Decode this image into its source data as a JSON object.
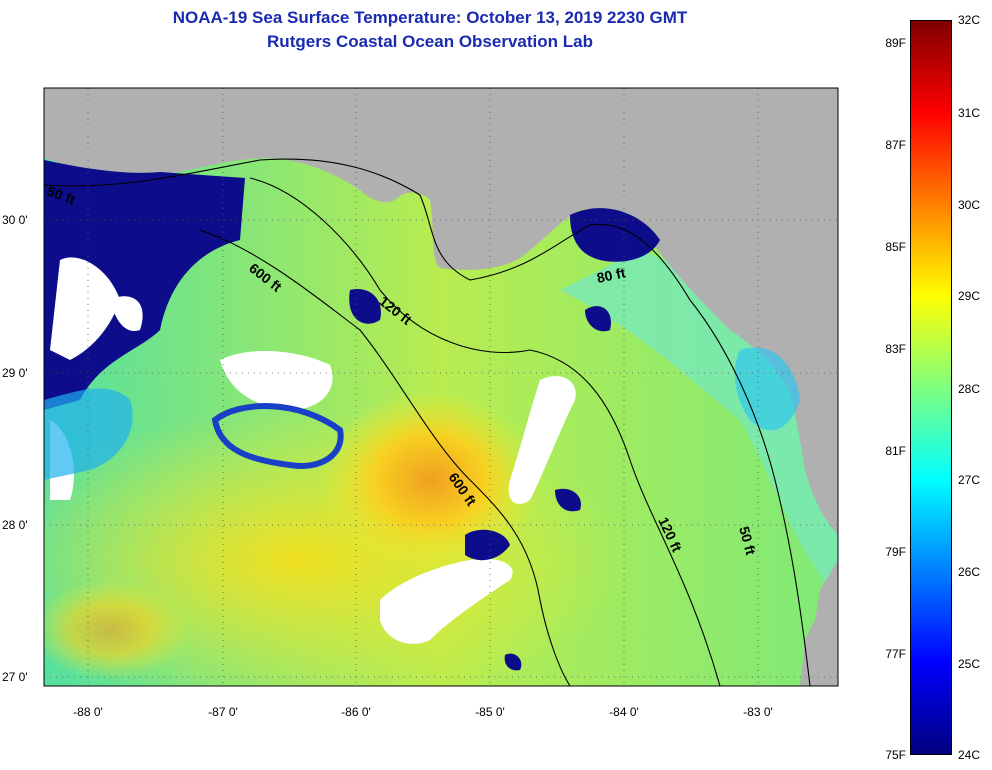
{
  "title": {
    "line1": "NOAA-19 Sea Surface Temperature:  October 13, 2019 2230 GMT",
    "line2": "Rutgers Coastal Ocean Observation Lab"
  },
  "map": {
    "latitude_labels": [
      "30 0'",
      "29 0'",
      "28 0'",
      "27 0'"
    ],
    "longitude_labels": [
      "-88 0'",
      "-87 0'",
      "-86 0'",
      "-85 0'",
      "-84 0'",
      "-83 0'"
    ],
    "contour_labels": [
      {
        "text": "50 ft",
        "depth_ft": 50
      },
      {
        "text": "600 ft",
        "depth_ft": 600
      },
      {
        "text": "120 ft",
        "depth_ft": 120
      },
      {
        "text": "80 ft",
        "depth_ft": 80
      },
      {
        "text": "600 ft",
        "depth_ft": 600
      },
      {
        "text": "120 ft",
        "depth_ft": 120
      },
      {
        "text": "50 ft",
        "depth_ft": 50
      }
    ],
    "colors": {
      "land": "#b0b0b0",
      "cloud": "#ffffff",
      "cold": "#0d0d8c"
    }
  },
  "colorbar": {
    "fahrenheit_labels": [
      "89F",
      "87F",
      "85F",
      "83F",
      "81F",
      "79F",
      "77F",
      "75F"
    ],
    "celsius_labels": [
      "32C",
      "31C",
      "30C",
      "29C",
      "28C",
      "27C",
      "26C",
      "25C",
      "24C"
    ],
    "range_c": [
      24,
      32
    ],
    "colormap": [
      "#00007f",
      "#0000ff",
      "#0080ff",
      "#00ffff",
      "#80ff80",
      "#ffff00",
      "#ff8000",
      "#ff0000",
      "#7f0000"
    ]
  }
}
